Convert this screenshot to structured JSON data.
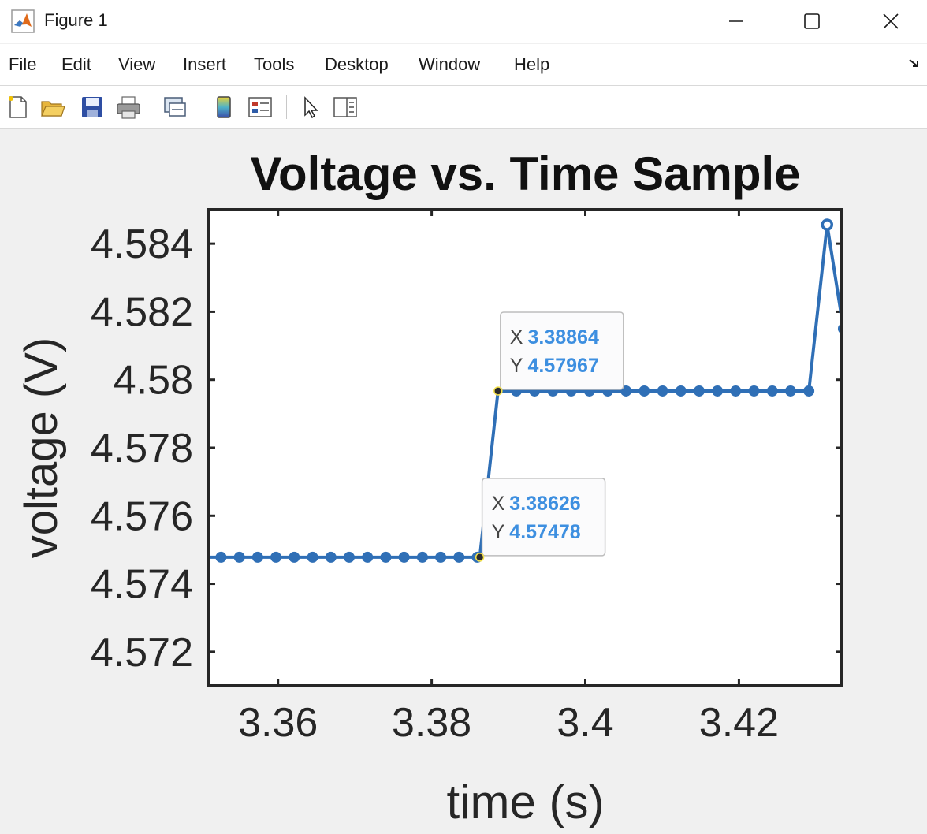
{
  "window": {
    "title": "Figure 1",
    "app_icon": "matlab-logo-icon",
    "controls": [
      "minimize-icon",
      "maximize-icon",
      "close-icon"
    ]
  },
  "menubar": {
    "items": [
      "File",
      "Edit",
      "View",
      "Insert",
      "Tools",
      "Desktop",
      "Window",
      "Help"
    ],
    "dock_icon": "dock-arrow-icon"
  },
  "toolbar": {
    "buttons": [
      {
        "name": "new-figure",
        "icon": "new-document-icon"
      },
      {
        "name": "open-file",
        "icon": "folder-open-icon"
      },
      {
        "name": "save-figure",
        "icon": "floppy-disk-icon"
      },
      {
        "name": "print-figure",
        "icon": "printer-icon"
      },
      {
        "name": "link-plot",
        "icon": "link-plot-icon"
      },
      {
        "name": "insert-colorbar",
        "icon": "colorbar-icon"
      },
      {
        "name": "insert-legend",
        "icon": "legend-icon"
      },
      {
        "name": "edit-plot",
        "icon": "pointer-arrow-icon"
      },
      {
        "name": "property-inspector",
        "icon": "property-panel-icon"
      }
    ]
  },
  "chart_data": {
    "type": "line",
    "title": "Voltage vs. Time Sample",
    "xlabel": "time (s)",
    "ylabel": "voltage (V)",
    "xlim": [
      3.351,
      3.4334
    ],
    "ylim": [
      4.571,
      4.585
    ],
    "xticks": [
      3.36,
      3.38,
      3.4,
      3.42
    ],
    "xtick_labels": [
      "3.36",
      "3.38",
      "3.4",
      "3.42"
    ],
    "yticks": [
      4.572,
      4.574,
      4.576,
      4.578,
      4.58,
      4.582,
      4.584
    ],
    "ytick_labels": [
      "4.572",
      "4.574",
      "4.576",
      "4.578",
      "4.58",
      "4.582",
      "4.584"
    ],
    "grid": false,
    "line_color": "#2f6fb6",
    "series": [
      {
        "x": [
          3.3502,
          3.35258,
          3.35497,
          3.35735,
          3.35973,
          3.36211,
          3.3645,
          3.36688,
          3.36926,
          3.37165,
          3.37403,
          3.37641,
          3.3788,
          3.38118,
          3.38356,
          3.38594,
          3.38626,
          3.38864,
          3.39102,
          3.3934,
          3.39578,
          3.39816,
          3.40054,
          3.40292,
          3.4053,
          3.40768,
          3.41006,
          3.41244,
          3.41482,
          3.4172,
          3.41958,
          3.42196,
          3.42434,
          3.42672,
          3.4291,
          3.43148,
          3.4336
        ],
        "y": [
          4.57478,
          4.57478,
          4.57478,
          4.57478,
          4.57478,
          4.57478,
          4.57478,
          4.57478,
          4.57478,
          4.57478,
          4.57478,
          4.57478,
          4.57478,
          4.57478,
          4.57478,
          4.57478,
          4.57478,
          4.57967,
          4.57967,
          4.57967,
          4.57967,
          4.57967,
          4.57967,
          4.57967,
          4.57967,
          4.57967,
          4.57967,
          4.57967,
          4.57967,
          4.57967,
          4.57967,
          4.57967,
          4.57967,
          4.57967,
          4.57967,
          4.58456,
          4.5815
        ]
      }
    ],
    "datatips": [
      {
        "x_label": "X",
        "y_label": "Y",
        "x": 3.38626,
        "y": 4.57478,
        "x_text": "3.38626",
        "y_text": "4.57478"
      },
      {
        "x_label": "X",
        "y_label": "Y",
        "x": 3.38864,
        "y": 4.57967,
        "x_text": "3.38864",
        "y_text": "4.57967"
      }
    ],
    "datatip_value_color": "#3d8fe0"
  }
}
